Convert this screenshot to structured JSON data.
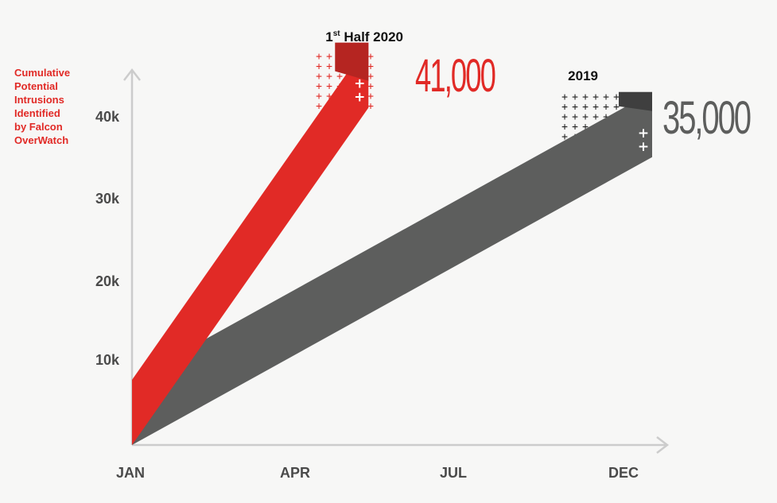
{
  "chart_data": {
    "type": "area",
    "ylabel_lines": [
      "Cumulative",
      "Potential",
      "Intrusions",
      "Identified",
      "by Falcon",
      "OverWatch"
    ],
    "xlabel": "",
    "x_ticks": [
      "JAN",
      "APR",
      "JUL",
      "DEC"
    ],
    "y_ticks": [
      "10k",
      "20k",
      "30k",
      "40k"
    ],
    "y_tick_values": [
      10000,
      20000,
      30000,
      40000
    ],
    "ylim": [
      0,
      45000
    ],
    "grid": false,
    "series": [
      {
        "name": "2019",
        "name_parts": {
          "main": "2019"
        },
        "color": "#5d5e5d",
        "dark_color": "#3f3f3f",
        "x": [
          "JAN",
          "DEC"
        ],
        "values": [
          0,
          35000
        ],
        "label": "35,000"
      },
      {
        "name": "1st Half 2020",
        "name_parts": {
          "lead": "1",
          "sup": "st",
          "rest": " Half 2020"
        },
        "color": "#e12a26",
        "dark_color": "#b52521",
        "x": [
          "JAN",
          "JUN"
        ],
        "values": [
          0,
          41000
        ],
        "label": "41,000"
      }
    ]
  }
}
